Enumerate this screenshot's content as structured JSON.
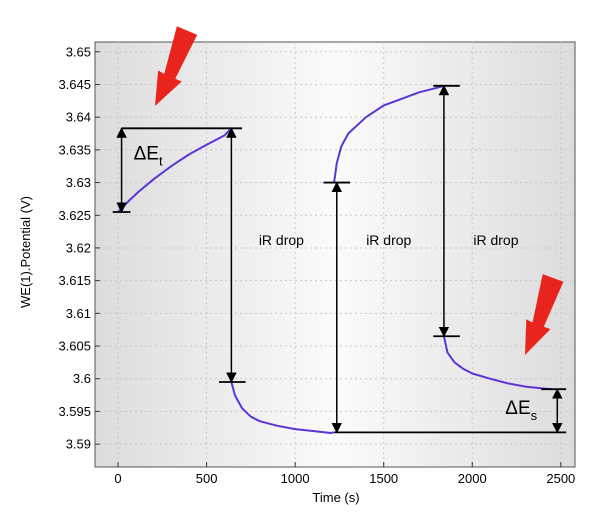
{
  "chart_data": {
    "type": "line",
    "xlabel": "Time (s)",
    "ylabel": "WE(1).Potential (V)",
    "xlim": [
      -130,
      2580
    ],
    "ylim": [
      3.5865,
      3.6515
    ],
    "x_ticks": [
      0,
      500,
      1000,
      1500,
      2000,
      2500
    ],
    "x_tick_labels": [
      "0",
      "500",
      "1000",
      "1500",
      "2000",
      "2500"
    ],
    "y_ticks": [
      3.59,
      3.595,
      3.6,
      3.605,
      3.61,
      3.615,
      3.62,
      3.625,
      3.63,
      3.635,
      3.64,
      3.645,
      3.65
    ],
    "y_tick_labels": [
      "3.59",
      "3.595",
      "3.6",
      "3.605",
      "3.61",
      "3.615",
      "3.62",
      "3.625",
      "3.63",
      "3.635",
      "3.64",
      "3.645",
      "3.65"
    ],
    "grid": true,
    "line_color": "#5b35d5",
    "segments": [
      {
        "x": [
          0,
          60,
          120,
          200,
          300,
          400,
          500,
          600,
          640
        ],
        "y": [
          3.6255,
          3.6272,
          3.6287,
          3.6305,
          3.6325,
          3.6343,
          3.6358,
          3.6372,
          3.6383
        ]
      },
      {
        "x": [
          640,
          660,
          700,
          750,
          800,
          900,
          1000,
          1100,
          1200,
          1220
        ],
        "y": [
          3.5995,
          3.5975,
          3.5955,
          3.5942,
          3.5935,
          3.5928,
          3.5923,
          3.592,
          3.5917,
          3.5918
        ]
      },
      {
        "x": [
          1220,
          1235,
          1260,
          1300,
          1400,
          1500,
          1600,
          1700,
          1800,
          1840
        ],
        "y": [
          3.63,
          3.633,
          3.6355,
          3.6375,
          3.64,
          3.6418,
          3.6428,
          3.6438,
          3.6445,
          3.6448
        ]
      },
      {
        "x": [
          1840,
          1860,
          1900,
          1950,
          2000,
          2100,
          2200,
          2300,
          2400,
          2450
        ],
        "y": [
          3.6065,
          3.604,
          3.6025,
          3.6015,
          3.6008,
          3.6,
          3.5993,
          3.5988,
          3.5985,
          3.5984
        ]
      }
    ],
    "annotations": {
      "delta_t": {
        "letter": "ΔE",
        "sub": "t"
      },
      "delta_s": {
        "letter": "ΔE",
        "sub": "s"
      },
      "ir_drop_labels": [
        "iR drop",
        "iR drop",
        "iR drop"
      ]
    },
    "arrow_color": "#e8241c"
  }
}
